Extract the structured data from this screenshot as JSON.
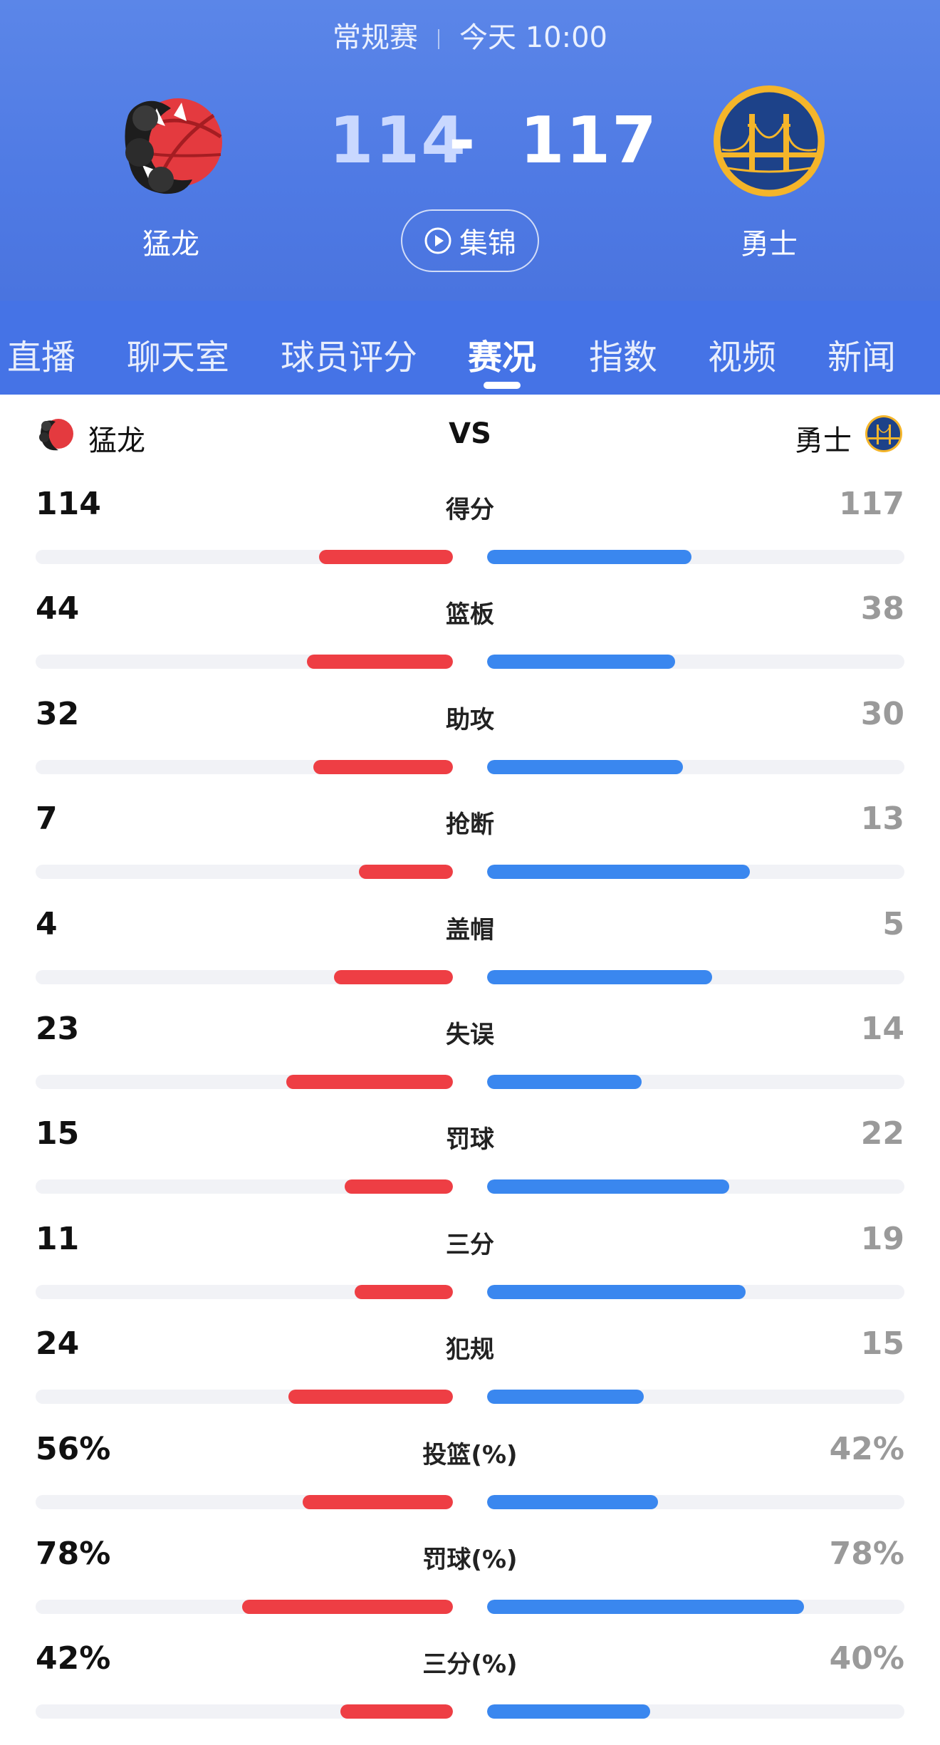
{
  "header": {
    "game_type": "常规赛",
    "game_time": "今天 10:00",
    "home": {
      "name": "猛龙",
      "score": "114",
      "logo_icon": "raptors-claw-basketball-icon"
    },
    "away": {
      "name": "勇士",
      "score": "117",
      "logo_icon": "warriors-golden-gate-bridge-icon"
    },
    "score_separator": "-",
    "highlights_label": "集锦"
  },
  "tabs": [
    {
      "label": "直播"
    },
    {
      "label": "聊天室"
    },
    {
      "label": "球员评分"
    },
    {
      "label": "赛况",
      "active": true
    },
    {
      "label": "指数"
    },
    {
      "label": "视频"
    },
    {
      "label": "新闻"
    }
  ],
  "stats": {
    "home_name": "猛龙",
    "away_name": "勇士",
    "vs_label": "VS",
    "colors": {
      "home": "#ee3e44",
      "away": "#3a87ef",
      "track": "#f1f2f6"
    },
    "rows": [
      {
        "label": "得分",
        "home": "114",
        "away": "117",
        "home_fill": 0.32,
        "away_fill": 0.49
      },
      {
        "label": "篮板",
        "home": "44",
        "away": "38",
        "home_fill": 0.35,
        "away_fill": 0.45
      },
      {
        "label": "助攻",
        "home": "32",
        "away": "30",
        "home_fill": 0.335,
        "away_fill": 0.47
      },
      {
        "label": "抢断",
        "home": "7",
        "away": "13",
        "home_fill": 0.225,
        "away_fill": 0.63
      },
      {
        "label": "盖帽",
        "home": "4",
        "away": "5",
        "home_fill": 0.285,
        "away_fill": 0.54
      },
      {
        "label": "失误",
        "home": "23",
        "away": "14",
        "home_fill": 0.4,
        "away_fill": 0.37
      },
      {
        "label": "罚球",
        "home": "15",
        "away": "22",
        "home_fill": 0.26,
        "away_fill": 0.58
      },
      {
        "label": "三分",
        "home": "11",
        "away": "19",
        "home_fill": 0.235,
        "away_fill": 0.62
      },
      {
        "label": "犯规",
        "home": "24",
        "away": "15",
        "home_fill": 0.395,
        "away_fill": 0.375
      },
      {
        "label": "投篮(%)",
        "home": "56%",
        "away": "42%",
        "home_fill": 0.36,
        "away_fill": 0.41
      },
      {
        "label": "罚球(%)",
        "home": "78%",
        "away": "78%",
        "home_fill": 0.505,
        "away_fill": 0.76
      },
      {
        "label": "三分(%)",
        "home": "42%",
        "away": "40%",
        "home_fill": 0.27,
        "away_fill": 0.39
      }
    ]
  }
}
